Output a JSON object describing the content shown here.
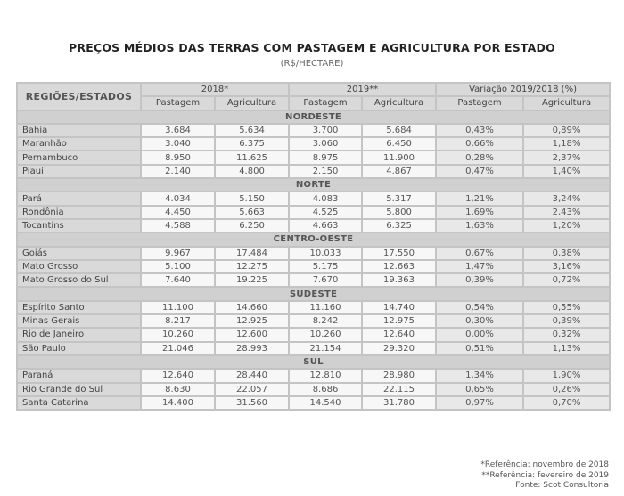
{
  "title": "PREÇOS MÉDIOS DAS TERRAS COM PASTAGEM E AGRICULTURA POR ESTADO",
  "subtitle": "(R$/HECTARE)",
  "header": {
    "label": "REGIÕES/ESTADOS",
    "groups": [
      "2018*",
      "2019**",
      "Variação 2019/2018 (%)"
    ],
    "sub": [
      "Pastagem",
      "Agricultura",
      "Pastagem",
      "Agricultura",
      "Pastagem",
      "Agricultura"
    ]
  },
  "regions": [
    {
      "name": "NORDESTE",
      "rows": [
        {
          "state": "Bahia",
          "values": [
            "3.684",
            "5.634",
            "3.700",
            "5.684",
            "0,43%",
            "0,89%"
          ]
        },
        {
          "state": "Maranhão",
          "values": [
            "3.040",
            "6.375",
            "3.060",
            "6.450",
            "0,66%",
            "1,18%"
          ]
        },
        {
          "state": "Pernambuco",
          "values": [
            "8.950",
            "11.625",
            "8.975",
            "11.900",
            "0,28%",
            "2,37%"
          ]
        },
        {
          "state": "Piauí",
          "values": [
            "2.140",
            "4.800",
            "2.150",
            "4.867",
            "0,47%",
            "1,40%"
          ]
        }
      ]
    },
    {
      "name": "NORTE",
      "rows": [
        {
          "state": "Pará",
          "values": [
            "4.034",
            "5.150",
            "4.083",
            "5.317",
            "1,21%",
            "3,24%"
          ]
        },
        {
          "state": "Rondônia",
          "values": [
            "4.450",
            "5.663",
            "4.525",
            "5.800",
            "1,69%",
            "2,43%"
          ]
        },
        {
          "state": "Tocantins",
          "values": [
            "4.588",
            "6.250",
            "4.663",
            "6.325",
            "1,63%",
            "1,20%"
          ]
        }
      ]
    },
    {
      "name": "CENTRO-OESTE",
      "rows": [
        {
          "state": "Goiás",
          "values": [
            "9.967",
            "17.484",
            "10.033",
            "17.550",
            "0,67%",
            "0,38%"
          ]
        },
        {
          "state": "Mato Grosso",
          "values": [
            "5.100",
            "12.275",
            "5.175",
            "12.663",
            "1,47%",
            "3,16%"
          ]
        },
        {
          "state": "Mato Grosso do Sul",
          "values": [
            "7.640",
            "19.225",
            "7.670",
            "19.363",
            "0,39%",
            "0,72%"
          ]
        }
      ]
    },
    {
      "name": "SUDESTE",
      "rows": [
        {
          "state": "Espírito Santo",
          "values": [
            "11.100",
            "14.660",
            "11.160",
            "14.740",
            "0,54%",
            "0,55%"
          ]
        },
        {
          "state": "Minas Gerais",
          "values": [
            "8.217",
            "12.925",
            "8.242",
            "12.975",
            "0,30%",
            "0,39%"
          ]
        },
        {
          "state": "Rio de Janeiro",
          "values": [
            "10.260",
            "12.600",
            "10.260",
            "12.640",
            "0,00%",
            "0,32%"
          ]
        },
        {
          "state": "São Paulo",
          "values": [
            "21.046",
            "28.993",
            "21.154",
            "29.320",
            "0,51%",
            "1,13%"
          ]
        }
      ]
    },
    {
      "name": "SUL",
      "rows": [
        {
          "state": "Paraná",
          "values": [
            "12.640",
            "28.440",
            "12.810",
            "28.980",
            "1,34%",
            "1,90%"
          ]
        },
        {
          "state": "Rio Grande do Sul",
          "values": [
            "8.630",
            "22.057",
            "8.686",
            "22.115",
            "0,65%",
            "0,26%"
          ]
        },
        {
          "state": "Santa Catarina",
          "values": [
            "14.400",
            "31.560",
            "14.540",
            "31.780",
            "0,97%",
            "0,70%"
          ]
        }
      ]
    }
  ],
  "notes": [
    "*Referência: novembro de 2018",
    "**Referência: fevereiro de 2019",
    "Fonte: Scot Consultoria"
  ]
}
